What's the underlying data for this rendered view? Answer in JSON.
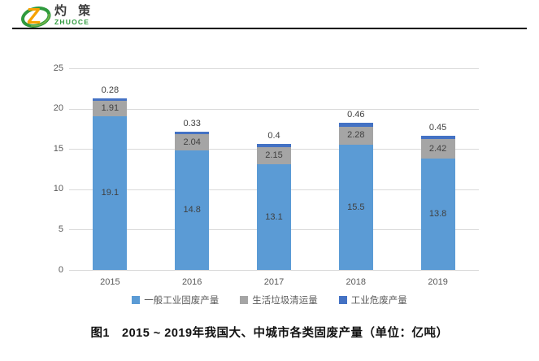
{
  "logo": {
    "brand_cn": "灼 策",
    "brand_en": "ZHUOCE",
    "mark_colors": {
      "ring": "#2f9a3d",
      "z": "#f6a200"
    }
  },
  "chart_data": {
    "type": "bar",
    "stacked": true,
    "categories": [
      "2015",
      "2016",
      "2017",
      "2018",
      "2019"
    ],
    "series": [
      {
        "name": "一般工业固废产量",
        "color": "#5B9BD5",
        "values": [
          19.1,
          14.8,
          13.1,
          15.5,
          13.8
        ]
      },
      {
        "name": "生活垃圾清运量",
        "color": "#A5A5A5",
        "values": [
          1.91,
          2.04,
          2.15,
          2.28,
          2.42
        ]
      },
      {
        "name": "工业危废产量",
        "color": "#4472C4",
        "values": [
          0.28,
          0.33,
          0.4,
          0.46,
          0.45
        ]
      }
    ],
    "segment_labels": {
      "series0": [
        "19.1",
        "14.8",
        "13.1",
        "15.5",
        "13.8"
      ],
      "series1": [
        "1.91",
        "2.04",
        "2.15",
        "2.28",
        "2.42"
      ],
      "series2_above_bar": [
        "0.28",
        "0.33",
        "0.4",
        "0.46",
        "0.45"
      ]
    },
    "ylim": [
      0,
      25
    ],
    "ytick_step": 5,
    "yticks": [
      "0",
      "5",
      "10",
      "15",
      "20",
      "25"
    ],
    "grid": true,
    "grid_color": "#d9d9d9",
    "legend_position": "bottom"
  },
  "caption": {
    "text": "图1　2015 ~ 2019年我国大、中城市各类固废产量（单位：亿吨）"
  }
}
